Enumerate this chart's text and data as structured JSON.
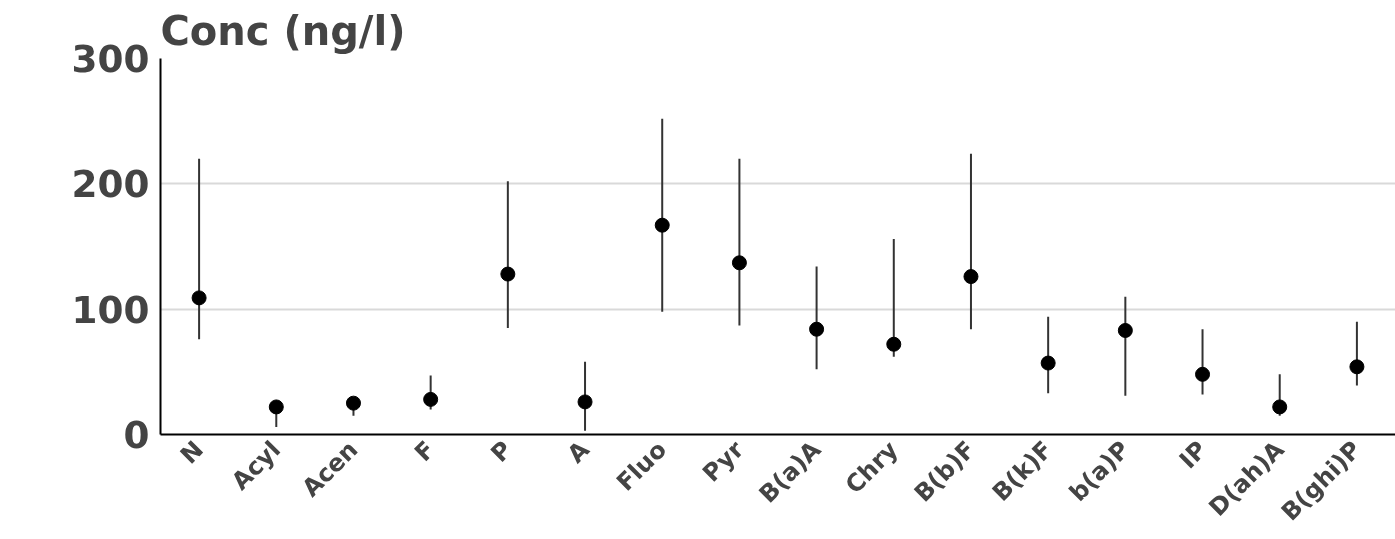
{
  "chart_data": {
    "type": "scatter",
    "title": "Conc (ng/l)",
    "categories": [
      "N",
      "Acyl",
      "Acen",
      "F",
      "P",
      "A",
      "Fluo",
      "Pyr",
      "B(a)A",
      "Chry",
      "B(b)F",
      "B(k)F",
      "b(a)P",
      "IP",
      "D(ah)A",
      "B(ghi)P"
    ],
    "values": [
      109,
      22,
      25,
      28,
      128,
      26,
      167,
      137,
      84,
      72,
      126,
      57,
      83,
      48,
      22,
      54
    ],
    "errors": [
      [
        76,
        220
      ],
      [
        6,
        25
      ],
      [
        15,
        30
      ],
      [
        20,
        47
      ],
      [
        85,
        202
      ],
      [
        3,
        58
      ],
      [
        98,
        252
      ],
      [
        87,
        220
      ],
      [
        52,
        134
      ],
      [
        62,
        156
      ],
      [
        84,
        224
      ],
      [
        33,
        94
      ],
      [
        31,
        110
      ],
      [
        32,
        84
      ],
      [
        15,
        48
      ],
      [
        39,
        90
      ]
    ],
    "color": "#000000",
    "marker": "circle",
    "ylim": [
      0,
      300
    ],
    "yticks": [
      0,
      100,
      200,
      300
    ],
    "grid": "y"
  }
}
